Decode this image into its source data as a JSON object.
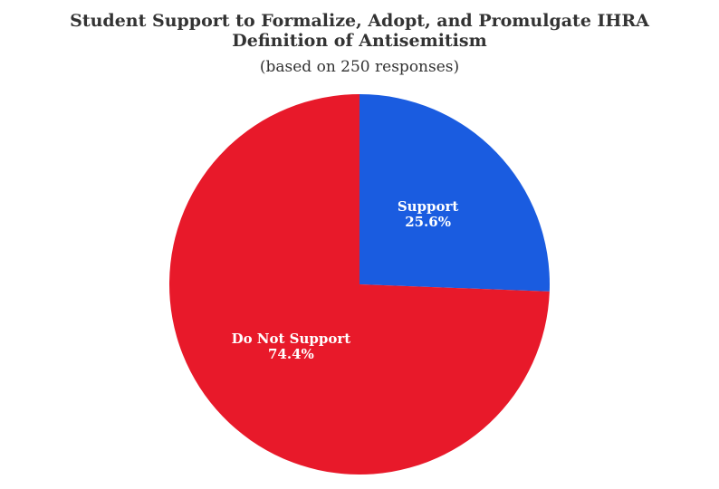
{
  "chart_data": {
    "type": "pie",
    "title": "Student Support to Formalize, Adopt, and Promulgate IHRA Definition of Antisemitism",
    "title_lines": [
      "Student Support to Formalize, Adopt, and Promulgate IHRA",
      "Definition of Antisemitism"
    ],
    "subtitle": "(based on 250 responses)",
    "slices": [
      {
        "label": "Support",
        "value": 25.6,
        "display": "25.6%",
        "color": "#1a5ce0"
      },
      {
        "label": "Do Not Support",
        "value": 74.4,
        "display": "74.4%",
        "color": "#e8192a"
      }
    ],
    "legend": "none"
  }
}
